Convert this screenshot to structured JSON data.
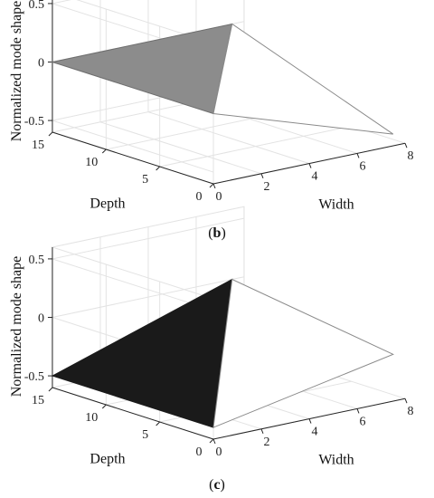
{
  "chart_data": [
    {
      "type": "surface3d",
      "panel_label": "b",
      "caption_open": "(",
      "caption_close": ")",
      "xlabel": "Width",
      "ylabel": "Depth",
      "zlabel": "Normalized mode shape",
      "xlim": [
        0,
        8
      ],
      "ylim": [
        0,
        15
      ],
      "zlim": [
        -0.6,
        0.6
      ],
      "xticks": [
        0,
        2,
        4,
        6,
        8
      ],
      "yticks": [
        0,
        5,
        10,
        15
      ],
      "zticks": [
        -0.5,
        0,
        0.5
      ],
      "xtick_labels": [
        "0",
        "2",
        "4",
        "6",
        "8"
      ],
      "ytick_labels": [
        "0",
        "5",
        "10",
        "15"
      ],
      "ztick_labels": [
        "-0.5",
        "0",
        "0.5"
      ],
      "grid": true,
      "fill_color": "#8c8c8c",
      "edge_color": "#6e6e6e",
      "outline": [
        [
          0,
          15,
          0.0
        ],
        [
          0,
          0,
          0.0
        ],
        [
          7.5,
          0,
          -0.5
        ],
        [
          7.5,
          15,
          0.0
        ]
      ],
      "fold": [
        [
          0,
          0,
          0.0
        ],
        [
          7.5,
          15,
          0.0
        ]
      ]
    },
    {
      "type": "surface3d",
      "panel_label": "c",
      "caption_open": "(",
      "caption_close": ")",
      "xlabel": "Width",
      "ylabel": "Depth",
      "zlabel": "Normalized mode shape",
      "xlim": [
        0,
        8
      ],
      "ylim": [
        0,
        15
      ],
      "zlim": [
        -0.6,
        0.6
      ],
      "xticks": [
        0,
        2,
        4,
        6,
        8
      ],
      "yticks": [
        0,
        5,
        10,
        15
      ],
      "zticks": [
        -0.5,
        0,
        0.5
      ],
      "xtick_labels": [
        "0",
        "2",
        "4",
        "6",
        "8"
      ],
      "ytick_labels": [
        "0",
        "5",
        "10",
        "15"
      ],
      "ztick_labels": [
        "-0.5",
        "0",
        "0.5"
      ],
      "grid": true,
      "fill_color": "#1a1a1a",
      "edge_color": "#1a1a1a",
      "outline": [
        [
          0,
          15,
          -0.5
        ],
        [
          0,
          0,
          -0.5
        ],
        [
          7.5,
          0,
          -0.2
        ],
        [
          7.5,
          15,
          0.0
        ]
      ],
      "fold": [
        [
          0,
          0,
          -0.5
        ],
        [
          7.5,
          15,
          0.0
        ]
      ]
    }
  ]
}
